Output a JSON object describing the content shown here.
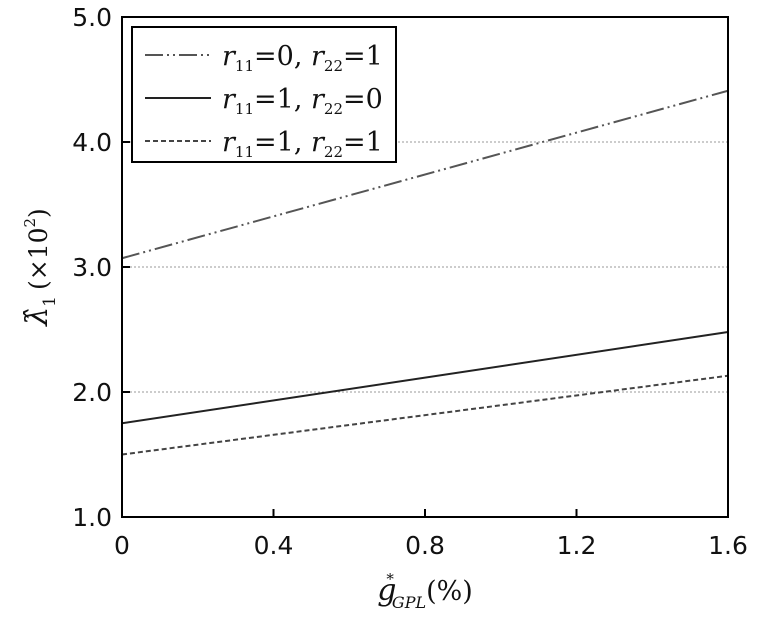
{
  "chart_data": {
    "type": "line",
    "x": [
      0,
      1.6
    ],
    "series": [
      {
        "name": "r11=0, r22=1",
        "legend": {
          "a": "r",
          "a_sub": "11",
          "a_val": "=0, ",
          "b": "r",
          "b_sub": "22",
          "b_val": "=1"
        },
        "values": [
          3.07,
          4.41
        ],
        "dash": "dash-dot-dot",
        "color": "#555555"
      },
      {
        "name": "r11=1, r22=0",
        "legend": {
          "a": "r",
          "a_sub": "11",
          "a_val": "=1, ",
          "b": "r",
          "b_sub": "22",
          "b_val": "=0"
        },
        "values": [
          1.75,
          2.48
        ],
        "dash": "solid",
        "color": "#222222"
      },
      {
        "name": "r11=1, r22=1",
        "legend": {
          "a": "r",
          "a_sub": "11",
          "a_val": "=1, ",
          "b": "r",
          "b_sub": "22",
          "b_val": "=1"
        },
        "values": [
          1.5,
          2.13
        ],
        "dash": "dashed",
        "color": "#444444"
      }
    ],
    "xlim": [
      0,
      1.6
    ],
    "ylim": [
      1.0,
      5.0
    ],
    "xticks": [
      "0",
      "0.4",
      "0.8",
      "1.2",
      "1.6"
    ],
    "yticks": [
      "1.0",
      "2.0",
      "3.0",
      "4.0",
      "5.0"
    ],
    "xlabel": {
      "main": "g",
      "sup": "*",
      "sub": "GPL",
      "unit": "(%)"
    },
    "ylabel": {
      "main": "λ̂",
      "sub": "1",
      "unit": "(×10",
      "exp": "2",
      "close": ")"
    },
    "grid": "horizontal dotted",
    "legend_position": "top-left"
  }
}
